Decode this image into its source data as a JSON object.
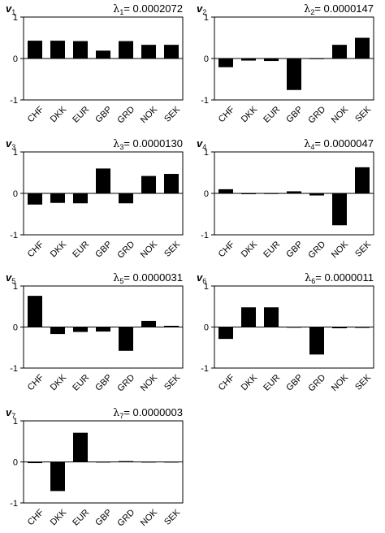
{
  "chart_data": [
    {
      "type": "bar",
      "vector_label": "v",
      "vector_sub": "1",
      "lambda_label": "λ",
      "lambda_sub": "1",
      "lambda_value": "= 0.0002072",
      "categories": [
        "CHF",
        "DKK",
        "EUR",
        "GBP",
        "GRD",
        "NOK",
        "SEK"
      ],
      "values": [
        0.43,
        0.43,
        0.42,
        0.19,
        0.42,
        0.33,
        0.33
      ],
      "ylim": [
        -1,
        1
      ],
      "yticks": [
        "1",
        "0",
        "-1"
      ]
    },
    {
      "type": "bar",
      "vector_label": "v",
      "vector_sub": "2",
      "lambda_label": "λ",
      "lambda_sub": "2",
      "lambda_value": "= 0.0000147",
      "categories": [
        "CHF",
        "DKK",
        "EUR",
        "GBP",
        "GRD",
        "NOK",
        "SEK"
      ],
      "values": [
        -0.21,
        -0.05,
        -0.06,
        -0.76,
        0.0,
        0.33,
        0.5
      ],
      "ylim": [
        -1,
        1
      ],
      "yticks": [
        "1",
        "0",
        "-1"
      ]
    },
    {
      "type": "bar",
      "vector_label": "v",
      "vector_sub": "3",
      "lambda_label": "λ",
      "lambda_sub": "3",
      "lambda_value": "= 0.0000130",
      "categories": [
        "CHF",
        "DKK",
        "EUR",
        "GBP",
        "GRD",
        "NOK",
        "SEK"
      ],
      "values": [
        -0.27,
        -0.23,
        -0.24,
        0.6,
        -0.24,
        0.42,
        0.47
      ],
      "ylim": [
        -1,
        1
      ],
      "yticks": [
        "1",
        "0",
        "-1"
      ]
    },
    {
      "type": "bar",
      "vector_label": "v",
      "vector_sub": "4",
      "lambda_label": "λ",
      "lambda_sub": "4",
      "lambda_value": "= 0.0000047",
      "categories": [
        "CHF",
        "DKK",
        "EUR",
        "GBP",
        "GRD",
        "NOK",
        "SEK"
      ],
      "values": [
        0.1,
        -0.02,
        0.0,
        0.05,
        -0.05,
        -0.77,
        0.63
      ],
      "ylim": [
        -1,
        1
      ],
      "yticks": [
        "1",
        "0",
        "-1"
      ]
    },
    {
      "type": "bar",
      "vector_label": "v",
      "vector_sub": "5",
      "lambda_label": "λ",
      "lambda_sub": "5",
      "lambda_value": "= 0.0000031",
      "categories": [
        "CHF",
        "DKK",
        "EUR",
        "GBP",
        "GRD",
        "NOK",
        "SEK"
      ],
      "values": [
        0.76,
        -0.17,
        -0.12,
        -0.11,
        -0.58,
        0.15,
        0.03
      ],
      "ylim": [
        -1,
        1
      ],
      "yticks": [
        "1",
        "0",
        "-1"
      ]
    },
    {
      "type": "bar",
      "vector_label": "v",
      "vector_sub": "6",
      "lambda_label": "λ",
      "lambda_sub": "6",
      "lambda_value": "= 0.0000011",
      "categories": [
        "CHF",
        "DKK",
        "EUR",
        "GBP",
        "GRD",
        "NOK",
        "SEK"
      ],
      "values": [
        -0.29,
        0.48,
        0.48,
        0.0,
        -0.67,
        -0.03,
        -0.02
      ],
      "ylim": [
        -1,
        1
      ],
      "yticks": [
        "1",
        "0",
        "-1"
      ]
    },
    {
      "type": "bar",
      "vector_label": "v",
      "vector_sub": "7",
      "lambda_label": "λ",
      "lambda_sub": "7",
      "lambda_value": "= 0.0000003",
      "categories": [
        "CHF",
        "DKK",
        "EUR",
        "GBP",
        "GRD",
        "NOK",
        "SEK"
      ],
      "values": [
        -0.03,
        -0.71,
        0.71,
        0.0,
        0.02,
        0.0,
        0.0
      ],
      "ylim": [
        -1,
        1
      ],
      "yticks": [
        "1",
        "0",
        "-1"
      ]
    }
  ]
}
